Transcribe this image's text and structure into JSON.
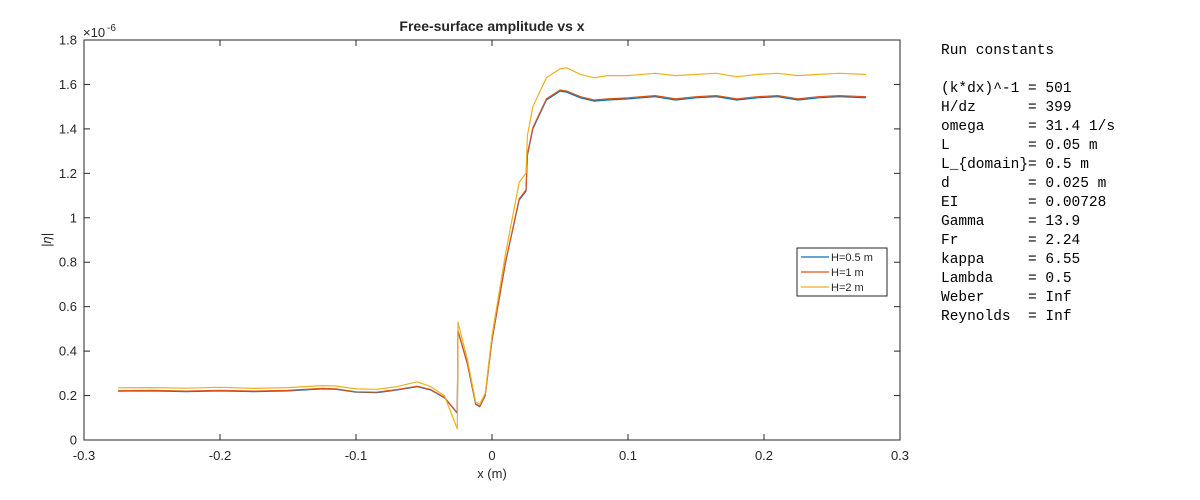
{
  "chart_data": {
    "type": "line",
    "title": "Free-surface amplitude vs x",
    "xlabel": "x (m)",
    "ylabel": "|η|",
    "y_exponent_label": "×10",
    "y_exponent_power": "-6",
    "xlim": [
      -0.3,
      0.3
    ],
    "ylim": [
      0,
      1.8
    ],
    "x_ticks": [
      "-0.3",
      "-0.2",
      "-0.1",
      "0",
      "0.1",
      "0.2",
      "0.3"
    ],
    "y_ticks": [
      "0",
      "0.2",
      "0.4",
      "0.6",
      "0.8",
      "1",
      "1.2",
      "1.4",
      "1.6",
      "1.8"
    ],
    "grid": false,
    "legend_position": "right",
    "series": [
      {
        "name": "H=0.5 m",
        "color": "#0072BD",
        "x": [
          -0.275,
          -0.25,
          -0.225,
          -0.2,
          -0.175,
          -0.15,
          -0.125,
          -0.115,
          -0.1,
          -0.085,
          -0.07,
          -0.055,
          -0.045,
          -0.035,
          -0.0255,
          -0.025,
          -0.018,
          -0.012,
          -0.009,
          -0.005,
          0.0,
          0.01,
          0.02,
          0.025,
          0.026,
          0.03,
          0.04,
          0.05,
          0.055,
          0.065,
          0.075,
          0.085,
          0.1,
          0.12,
          0.135,
          0.15,
          0.165,
          0.18,
          0.195,
          0.21,
          0.225,
          0.24,
          0.255,
          0.275
        ],
        "values": [
          0.22,
          0.221,
          0.218,
          0.221,
          0.218,
          0.221,
          0.23,
          0.228,
          0.215,
          0.213,
          0.225,
          0.24,
          0.225,
          0.19,
          0.12,
          0.49,
          0.34,
          0.16,
          0.15,
          0.2,
          0.45,
          0.8,
          1.08,
          1.12,
          1.28,
          1.4,
          1.53,
          1.57,
          1.565,
          1.54,
          1.525,
          1.53,
          1.535,
          1.545,
          1.53,
          1.54,
          1.545,
          1.53,
          1.54,
          1.545,
          1.53,
          1.54,
          1.545,
          1.54
        ]
      },
      {
        "name": "H=1 m",
        "color": "#D95319",
        "x": [
          -0.275,
          -0.25,
          -0.225,
          -0.2,
          -0.175,
          -0.15,
          -0.125,
          -0.115,
          -0.1,
          -0.085,
          -0.07,
          -0.055,
          -0.045,
          -0.035,
          -0.0255,
          -0.025,
          -0.018,
          -0.012,
          -0.009,
          -0.005,
          0.0,
          0.01,
          0.02,
          0.025,
          0.026,
          0.03,
          0.04,
          0.05,
          0.055,
          0.065,
          0.075,
          0.085,
          0.1,
          0.12,
          0.135,
          0.15,
          0.165,
          0.18,
          0.195,
          0.21,
          0.225,
          0.24,
          0.255,
          0.275
        ],
        "values": [
          0.222,
          0.223,
          0.22,
          0.223,
          0.22,
          0.223,
          0.232,
          0.23,
          0.217,
          0.215,
          0.227,
          0.242,
          0.227,
          0.192,
          0.122,
          0.492,
          0.342,
          0.162,
          0.152,
          0.202,
          0.452,
          0.802,
          1.085,
          1.125,
          1.285,
          1.405,
          1.535,
          1.575,
          1.57,
          1.545,
          1.53,
          1.535,
          1.54,
          1.55,
          1.535,
          1.545,
          1.55,
          1.535,
          1.545,
          1.55,
          1.535,
          1.545,
          1.55,
          1.545
        ]
      },
      {
        "name": "H=2 m",
        "color": "#EDB120",
        "x": [
          -0.275,
          -0.25,
          -0.225,
          -0.2,
          -0.175,
          -0.15,
          -0.125,
          -0.115,
          -0.1,
          -0.085,
          -0.07,
          -0.055,
          -0.045,
          -0.035,
          -0.0255,
          -0.025,
          -0.018,
          -0.012,
          -0.009,
          -0.005,
          0.0,
          0.01,
          0.02,
          0.025,
          0.026,
          0.03,
          0.04,
          0.05,
          0.055,
          0.065,
          0.075,
          0.085,
          0.1,
          0.12,
          0.135,
          0.15,
          0.165,
          0.18,
          0.195,
          0.21,
          0.225,
          0.24,
          0.255,
          0.275
        ],
        "values": [
          0.235,
          0.236,
          0.233,
          0.237,
          0.232,
          0.236,
          0.245,
          0.243,
          0.23,
          0.228,
          0.24,
          0.262,
          0.24,
          0.2,
          0.05,
          0.53,
          0.36,
          0.17,
          0.16,
          0.21,
          0.47,
          0.84,
          1.16,
          1.2,
          1.37,
          1.5,
          1.63,
          1.67,
          1.675,
          1.645,
          1.63,
          1.64,
          1.64,
          1.65,
          1.64,
          1.645,
          1.65,
          1.635,
          1.645,
          1.65,
          1.64,
          1.645,
          1.65,
          1.645
        ]
      }
    ]
  },
  "run_constants": {
    "heading": "Run constants",
    "rows": [
      {
        "name": "(k*dx)^-1",
        "value": "501"
      },
      {
        "name": "H/dz",
        "value": "399"
      },
      {
        "name": "omega",
        "value": "31.4 1/s"
      },
      {
        "name": "L",
        "value": "0.05 m"
      },
      {
        "name": "L_{domain}",
        "value": "0.5 m"
      },
      {
        "name": "d",
        "value": "0.025 m"
      },
      {
        "name": "EI",
        "value": "0.00728"
      },
      {
        "name": "Gamma",
        "value": "13.9"
      },
      {
        "name": "Fr",
        "value": "2.24"
      },
      {
        "name": "kappa",
        "value": "6.55"
      },
      {
        "name": "Lambda",
        "value": "0.5"
      },
      {
        "name": "Weber",
        "value": "Inf"
      },
      {
        "name": "Reynolds",
        "value": "Inf"
      }
    ]
  }
}
